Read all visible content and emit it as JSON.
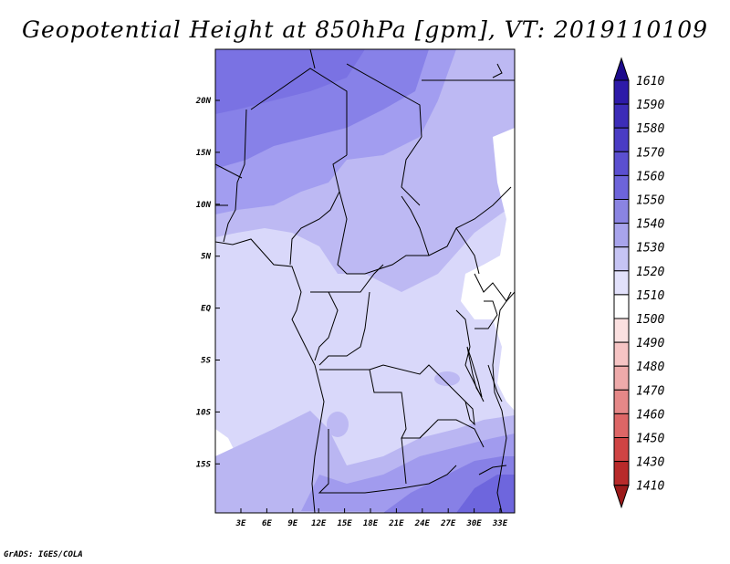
{
  "title": "Geopotential Height at 850hPa [gpm], VT: 2019110109",
  "footer": "GrADS: IGES/COLA",
  "lat_labels": [
    "20N",
    "15N",
    "10N",
    "5N",
    "EQ",
    "5S",
    "10S",
    "15S"
  ],
  "lon_labels": [
    "3E",
    "6E",
    "9E",
    "12E",
    "15E",
    "18E",
    "21E",
    "24E",
    "27E",
    "30E",
    "33E"
  ],
  "colorbar": {
    "levels": [
      "1610",
      "1590",
      "1580",
      "1570",
      "1560",
      "1550",
      "1540",
      "1530",
      "1520",
      "1510",
      "1500",
      "1490",
      "1480",
      "1470",
      "1460",
      "1450",
      "1430",
      "1410"
    ],
    "colors": [
      "#1d0b8c",
      "#2d1aa8",
      "#3c2cb8",
      "#4a3cc4",
      "#5b4fd0",
      "#6d64da",
      "#8a84e2",
      "#a8a4ec",
      "#c6c4f4",
      "#e2e1fb",
      "#ffffff",
      "#fbe0e0",
      "#f6c4c4",
      "#eeaaaa",
      "#e58888",
      "#dd6666",
      "#cf4444",
      "#b82a2a",
      "#9c1a1a"
    ]
  },
  "map": {
    "projection": "lat-lon",
    "lon_range": [
      0,
      34.5
    ],
    "lat_range": [
      -19,
      25
    ],
    "land_color": "#d9d8fa",
    "fields": [
      {
        "level": "1560",
        "color": "#7f78e6",
        "region": "far north"
      },
      {
        "level": "1550",
        "color": "#9a94ea",
        "region": "north"
      },
      {
        "level": "1540",
        "color": "#b7b3f1",
        "region": "central-north"
      },
      {
        "level": "1530",
        "color": "#d7d6f9",
        "region": "equatorial"
      },
      {
        "level": "1520",
        "color": "#ffffff",
        "region": "patches east"
      }
    ]
  }
}
